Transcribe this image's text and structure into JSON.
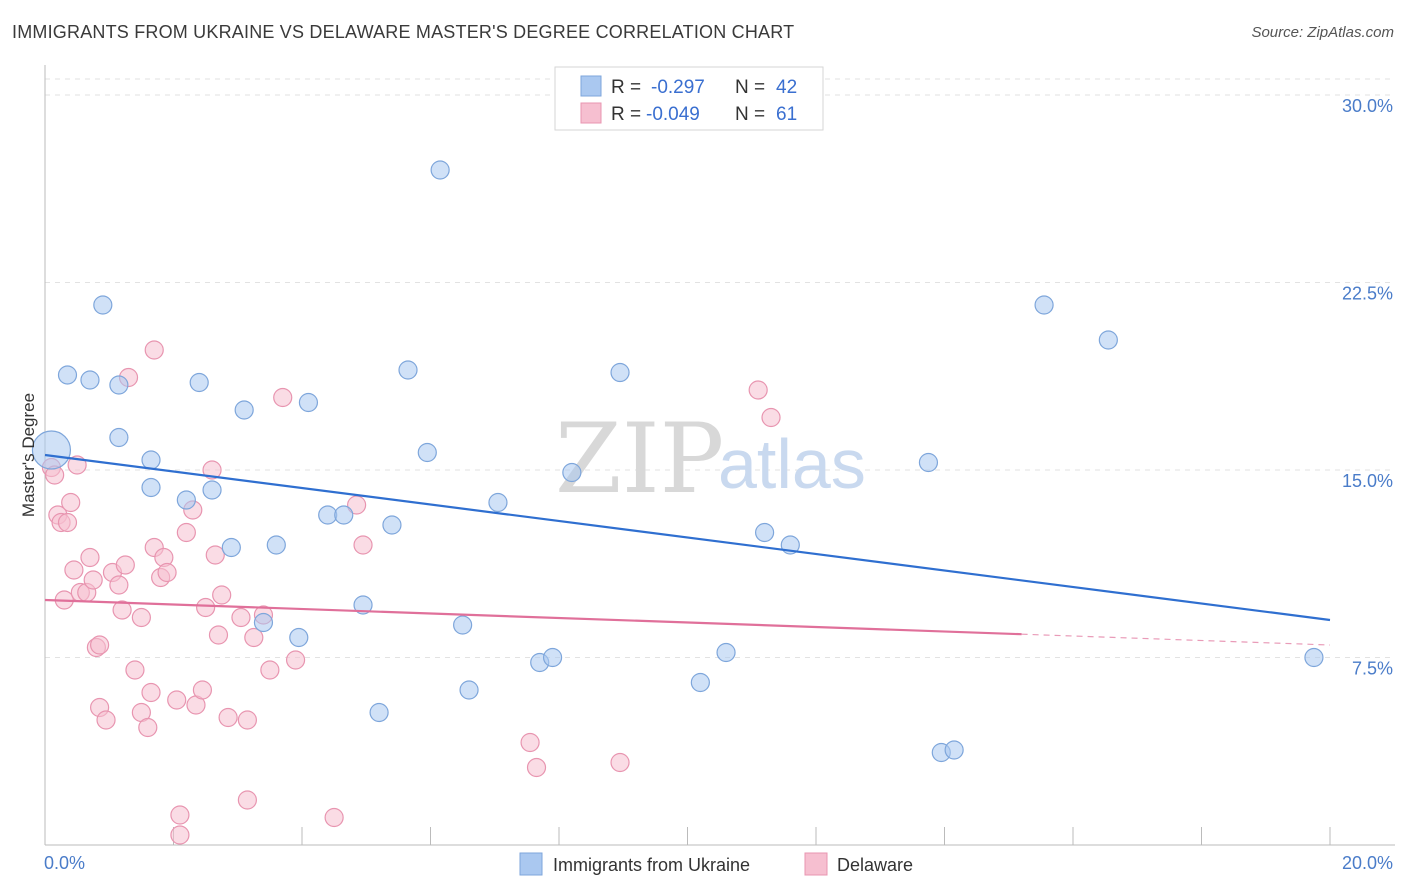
{
  "title": "IMMIGRANTS FROM UKRAINE VS DELAWARE MASTER'S DEGREE CORRELATION CHART",
  "source": "Source: ZipAtlas.com",
  "watermark": {
    "zip": "ZIP",
    "atlas": "atlas"
  },
  "colors": {
    "blue_fill": "#aac8f0",
    "blue_stroke": "#7ea6db",
    "blue_line": "#2f6fd0",
    "pink_fill": "#f6bfd0",
    "pink_stroke": "#e895b0",
    "pink_line": "#e0709a",
    "grid": "#e2e2e2",
    "axis_label": "#4a7cc9"
  },
  "legend": {
    "rows": [
      {
        "r_label": "R =",
        "r_value": "-0.297",
        "n_label": "N =",
        "n_value": "42"
      },
      {
        "r_label": "R =",
        "r_value": "-0.049",
        "n_label": "N =",
        "n_value": "61"
      }
    ]
  },
  "chart_data": {
    "type": "scatter",
    "title": "IMMIGRANTS FROM UKRAINE VS DELAWARE MASTER'S DEGREE CORRELATION CHART",
    "xlabel": "",
    "ylabel": "Master's Degree",
    "xlim": [
      0,
      20
    ],
    "ylim": [
      0,
      31
    ],
    "x_tick_labels": [
      "0.0%",
      "20.0%"
    ],
    "y_ticks": [
      7.5,
      15.0,
      22.5,
      30.0
    ],
    "y_tick_labels": [
      "7.5%",
      "15.0%",
      "22.5%",
      "30.0%"
    ],
    "series": [
      {
        "name": "Immigrants from Ukraine",
        "color": "#aac8f0",
        "r": -0.297,
        "n": 42,
        "trend": {
          "x": [
            0,
            20
          ],
          "y": [
            15.6,
            9.0
          ],
          "dashed_from": null
        },
        "points": [
          {
            "x": 0.1,
            "y": 15.8,
            "big": true
          },
          {
            "x": 0.35,
            "y": 18.8
          },
          {
            "x": 0.7,
            "y": 18.6
          },
          {
            "x": 0.9,
            "y": 21.6
          },
          {
            "x": 1.15,
            "y": 18.4
          },
          {
            "x": 1.15,
            "y": 16.3
          },
          {
            "x": 1.65,
            "y": 15.4
          },
          {
            "x": 1.65,
            "y": 14.3
          },
          {
            "x": 2.2,
            "y": 13.8
          },
          {
            "x": 2.4,
            "y": 18.5
          },
          {
            "x": 2.6,
            "y": 14.2
          },
          {
            "x": 2.9,
            "y": 11.9
          },
          {
            "x": 3.1,
            "y": 17.4
          },
          {
            "x": 3.4,
            "y": 8.9
          },
          {
            "x": 3.6,
            "y": 12.0
          },
          {
            "x": 3.95,
            "y": 8.3
          },
          {
            "x": 4.1,
            "y": 17.7
          },
          {
            "x": 4.4,
            "y": 13.2
          },
          {
            "x": 4.65,
            "y": 13.2
          },
          {
            "x": 4.95,
            "y": 9.6
          },
          {
            "x": 5.2,
            "y": 5.3
          },
          {
            "x": 5.4,
            "y": 12.8
          },
          {
            "x": 5.65,
            "y": 19.0
          },
          {
            "x": 5.95,
            "y": 15.7
          },
          {
            "x": 6.15,
            "y": 27.0
          },
          {
            "x": 6.5,
            "y": 8.8
          },
          {
            "x": 6.6,
            "y": 6.2
          },
          {
            "x": 7.05,
            "y": 13.7
          },
          {
            "x": 7.7,
            "y": 7.3
          },
          {
            "x": 7.9,
            "y": 7.5
          },
          {
            "x": 8.2,
            "y": 14.9
          },
          {
            "x": 8.95,
            "y": 18.9
          },
          {
            "x": 10.2,
            "y": 6.5
          },
          {
            "x": 10.6,
            "y": 7.7
          },
          {
            "x": 11.2,
            "y": 12.5
          },
          {
            "x": 11.6,
            "y": 12.0
          },
          {
            "x": 13.75,
            "y": 15.3
          },
          {
            "x": 13.95,
            "y": 3.7
          },
          {
            "x": 14.15,
            "y": 3.8
          },
          {
            "x": 15.55,
            "y": 21.6
          },
          {
            "x": 16.55,
            "y": 20.2
          },
          {
            "x": 19.75,
            "y": 7.5
          }
        ]
      },
      {
        "name": "Delaware",
        "color": "#f6bfd0",
        "r": -0.049,
        "n": 61,
        "trend": {
          "x": [
            0,
            20
          ],
          "y": [
            9.8,
            8.0
          ],
          "dashed_from": 15.2
        },
        "points": [
          {
            "x": 0.1,
            "y": 15.1
          },
          {
            "x": 0.15,
            "y": 14.8
          },
          {
            "x": 0.2,
            "y": 13.2
          },
          {
            "x": 0.25,
            "y": 12.9
          },
          {
            "x": 0.3,
            "y": 9.8
          },
          {
            "x": 0.35,
            "y": 12.9
          },
          {
            "x": 0.4,
            "y": 13.7
          },
          {
            "x": 0.45,
            "y": 11.0
          },
          {
            "x": 0.5,
            "y": 15.2
          },
          {
            "x": 0.55,
            "y": 10.1
          },
          {
            "x": 0.65,
            "y": 10.1
          },
          {
            "x": 0.7,
            "y": 11.5
          },
          {
            "x": 0.75,
            "y": 10.6
          },
          {
            "x": 0.8,
            "y": 7.9
          },
          {
            "x": 0.85,
            "y": 8.0
          },
          {
            "x": 0.85,
            "y": 5.5
          },
          {
            "x": 0.95,
            "y": 5.0
          },
          {
            "x": 1.05,
            "y": 10.9
          },
          {
            "x": 1.15,
            "y": 10.4
          },
          {
            "x": 1.2,
            "y": 9.4
          },
          {
            "x": 1.25,
            "y": 11.2
          },
          {
            "x": 1.3,
            "y": 18.7
          },
          {
            "x": 1.4,
            "y": 7.0
          },
          {
            "x": 1.5,
            "y": 5.3
          },
          {
            "x": 1.5,
            "y": 9.1
          },
          {
            "x": 1.6,
            "y": 4.7
          },
          {
            "x": 1.65,
            "y": 6.1
          },
          {
            "x": 1.7,
            "y": 11.9
          },
          {
            "x": 1.7,
            "y": 19.8
          },
          {
            "x": 1.8,
            "y": 10.7
          },
          {
            "x": 1.85,
            "y": 11.5
          },
          {
            "x": 1.9,
            "y": 10.9
          },
          {
            "x": 2.05,
            "y": 5.8
          },
          {
            "x": 2.1,
            "y": 1.2
          },
          {
            "x": 2.1,
            "y": 0.4
          },
          {
            "x": 2.2,
            "y": 12.5
          },
          {
            "x": 2.3,
            "y": 13.4
          },
          {
            "x": 2.35,
            "y": 5.6
          },
          {
            "x": 2.45,
            "y": 6.2
          },
          {
            "x": 2.5,
            "y": 9.5
          },
          {
            "x": 2.6,
            "y": 15.0
          },
          {
            "x": 2.65,
            "y": 11.6
          },
          {
            "x": 2.7,
            "y": 8.4
          },
          {
            "x": 2.75,
            "y": 10.0
          },
          {
            "x": 2.85,
            "y": 5.1
          },
          {
            "x": 3.05,
            "y": 9.1
          },
          {
            "x": 3.15,
            "y": 1.8
          },
          {
            "x": 3.15,
            "y": 5.0
          },
          {
            "x": 3.25,
            "y": 8.3
          },
          {
            "x": 3.4,
            "y": 9.2
          },
          {
            "x": 3.5,
            "y": 7.0
          },
          {
            "x": 3.7,
            "y": 17.9
          },
          {
            "x": 3.9,
            "y": 7.4
          },
          {
            "x": 4.5,
            "y": 1.1
          },
          {
            "x": 4.85,
            "y": 13.6
          },
          {
            "x": 4.95,
            "y": 12.0
          },
          {
            "x": 7.55,
            "y": 4.1
          },
          {
            "x": 7.65,
            "y": 3.1
          },
          {
            "x": 8.95,
            "y": 3.3
          },
          {
            "x": 11.1,
            "y": 18.2
          },
          {
            "x": 11.3,
            "y": 17.1
          }
        ]
      }
    ]
  }
}
